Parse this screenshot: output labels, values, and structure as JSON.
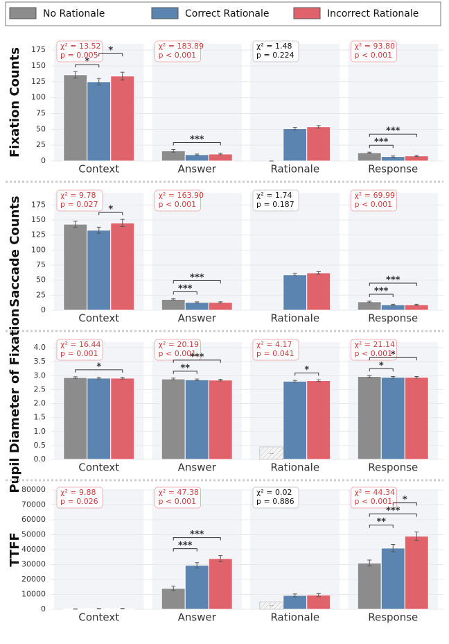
{
  "chart_data": [
    {
      "type": "bar",
      "ylabel": "Fixation Counts",
      "categories": [
        "Context",
        "Answer",
        "Rationale",
        "Response"
      ],
      "series": [
        {
          "name": "No Rationale",
          "color": "#8c8c8c",
          "values": [
            136,
            16,
            0,
            13
          ],
          "errors": [
            5,
            2,
            0,
            1
          ]
        },
        {
          "name": "Correct Rationale",
          "color": "#5b84b1",
          "values": [
            125,
            10,
            51,
            7
          ],
          "errors": [
            5,
            1,
            2,
            1
          ]
        },
        {
          "name": "Incorrect Rationale",
          "color": "#e0636b",
          "values": [
            134,
            11,
            54,
            8
          ],
          "errors": [
            6,
            1,
            2,
            1
          ]
        }
      ],
      "ylim": [
        0,
        185
      ],
      "yticks": [
        0,
        25,
        50,
        75,
        100,
        125,
        150,
        175
      ],
      "stats": [
        {
          "chi2": "χ² = 13.52",
          "p": "p = 0.005",
          "significant": true
        },
        {
          "chi2": "χ² = 183.89",
          "p": "p < 0.001",
          "significant": true
        },
        {
          "chi2": "χ² = 1.48",
          "p": "p = 0.224",
          "significant": false
        },
        {
          "chi2": "χ² = 93.80",
          "p": "p < 0.001",
          "significant": true
        }
      ],
      "brackets": [
        {
          "group": 0,
          "pair": [
            0,
            1
          ],
          "label": "*"
        },
        {
          "group": 0,
          "pair": [
            1,
            2
          ],
          "label": "*"
        },
        {
          "group": 1,
          "pair": [
            0,
            2
          ],
          "label": "***"
        },
        {
          "group": 3,
          "pair": [
            0,
            1
          ],
          "label": "***"
        },
        {
          "group": 3,
          "pair": [
            0,
            2
          ],
          "label": "***"
        }
      ],
      "placeholders": []
    },
    {
      "type": "bar",
      "ylabel": "Saccade Counts",
      "categories": [
        "Context",
        "Answer",
        "Rationale",
        "Response"
      ],
      "series": [
        {
          "name": "No Rationale",
          "color": "#8c8c8c",
          "values": [
            143,
            18,
            null,
            14
          ],
          "errors": [
            5,
            1,
            null,
            1
          ]
        },
        {
          "name": "Correct Rationale",
          "color": "#5b84b1",
          "values": [
            133,
            13,
            59,
            9
          ],
          "errors": [
            5,
            1,
            2,
            1
          ]
        },
        {
          "name": "Incorrect Rationale",
          "color": "#e0636b",
          "values": [
            145,
            13,
            62,
            9
          ],
          "errors": [
            6,
            1,
            2,
            1
          ]
        }
      ],
      "ylim": [
        0,
        195
      ],
      "yticks": [
        0,
        25,
        50,
        75,
        100,
        125,
        150,
        175
      ],
      "stats": [
        {
          "chi2": "χ² = 9.78",
          "p": "p = 0.027",
          "significant": true
        },
        {
          "chi2": "χ² = 163.90",
          "p": "p < 0.001",
          "significant": true
        },
        {
          "chi2": "χ² = 1.74",
          "p": "p = 0.187",
          "significant": false
        },
        {
          "chi2": "χ² = 69.99",
          "p": "p < 0.001",
          "significant": true
        }
      ],
      "brackets": [
        {
          "group": 0,
          "pair": [
            1,
            2
          ],
          "label": "*"
        },
        {
          "group": 1,
          "pair": [
            0,
            1
          ],
          "label": "***"
        },
        {
          "group": 1,
          "pair": [
            0,
            2
          ],
          "label": "***"
        },
        {
          "group": 3,
          "pair": [
            0,
            1
          ],
          "label": "***"
        },
        {
          "group": 3,
          "pair": [
            0,
            2
          ],
          "label": "***"
        }
      ],
      "placeholders": []
    },
    {
      "type": "bar",
      "ylabel": "Pupil Diameter of Fixation",
      "categories": [
        "Context",
        "Answer",
        "Rationale",
        "Response"
      ],
      "series": [
        {
          "name": "No Rationale",
          "color": "#8c8c8c",
          "values": [
            2.93,
            2.88,
            null,
            2.97
          ],
          "errors": [
            0.03,
            0.03,
            null,
            0.03
          ]
        },
        {
          "name": "Correct Rationale",
          "color": "#5b84b1",
          "values": [
            2.91,
            2.85,
            2.8,
            2.94
          ],
          "errors": [
            0.03,
            0.03,
            0.03,
            0.03
          ]
        },
        {
          "name": "Incorrect Rationale",
          "color": "#e0636b",
          "values": [
            2.91,
            2.84,
            2.82,
            2.94
          ],
          "errors": [
            0.03,
            0.03,
            0.03,
            0.03
          ]
        }
      ],
      "ylim": [
        0,
        4.2
      ],
      "yticks": [
        {
          "value": 0,
          "label": "0.0"
        },
        0.5,
        {
          "value": 1,
          "label": "1.0"
        },
        1.5,
        {
          "value": 2,
          "label": "2.0"
        },
        2.5,
        {
          "value": 3,
          "label": "3.0"
        },
        3.5,
        {
          "value": 4,
          "label": "4.0"
        }
      ],
      "stats": [
        {
          "chi2": "χ² = 16.44",
          "p": "p = 0.001",
          "significant": true
        },
        {
          "chi2": "χ² = 20.19",
          "p": "p < 0.001",
          "significant": true
        },
        {
          "chi2": "χ² = 4.17",
          "p": "p = 0.041",
          "significant": true
        },
        {
          "chi2": "χ² = 21.14",
          "p": "p < 0.001",
          "significant": true
        }
      ],
      "brackets": [
        {
          "group": 0,
          "pair": [
            0,
            2
          ],
          "label": "*"
        },
        {
          "group": 1,
          "pair": [
            0,
            1
          ],
          "label": "**"
        },
        {
          "group": 1,
          "pair": [
            0,
            2
          ],
          "label": "***"
        },
        {
          "group": 2,
          "pair": [
            1,
            2
          ],
          "label": "*"
        },
        {
          "group": 3,
          "pair": [
            0,
            1
          ],
          "label": "*"
        },
        {
          "group": 3,
          "pair": [
            0,
            2
          ],
          "label": "*"
        }
      ],
      "placeholders": [
        {
          "group": 2,
          "series": 0,
          "value": 0.45,
          "label": "--"
        }
      ]
    },
    {
      "type": "bar",
      "ylabel": "TTFF",
      "categories": [
        "Context",
        "Answer",
        "Rationale",
        "Response"
      ],
      "series": [
        {
          "name": "No Rationale",
          "color": "#8c8c8c",
          "values": [
            200,
            14000,
            null,
            31000
          ],
          "errors": [
            100,
            1500,
            null,
            2000
          ]
        },
        {
          "name": "Correct Rationale",
          "color": "#5b84b1",
          "values": [
            400,
            29500,
            9300,
            41000
          ],
          "errors": [
            100,
            1800,
            1000,
            2500
          ]
        },
        {
          "name": "Incorrect Rationale",
          "color": "#e0636b",
          "values": [
            500,
            34000,
            9500,
            49000
          ],
          "errors": [
            100,
            2000,
            1000,
            2800
          ]
        }
      ],
      "ylim": [
        0,
        80000
      ],
      "yticks": [
        0,
        10000,
        20000,
        30000,
        40000,
        50000,
        60000,
        70000,
        80000
      ],
      "stats": [
        {
          "chi2": "χ² = 9.88",
          "p": "p = 0.026",
          "significant": true
        },
        {
          "chi2": "χ² = 47.38",
          "p": "p < 0.001",
          "significant": true
        },
        {
          "chi2": "χ² = 0.02",
          "p": "p = 0.886",
          "significant": false
        },
        {
          "chi2": "χ² = 44.34",
          "p": "p < 0.001",
          "significant": true
        }
      ],
      "brackets": [
        {
          "group": 1,
          "pair": [
            0,
            1
          ],
          "label": "***"
        },
        {
          "group": 1,
          "pair": [
            0,
            2
          ],
          "label": "***"
        },
        {
          "group": 3,
          "pair": [
            0,
            1
          ],
          "label": "**"
        },
        {
          "group": 3,
          "pair": [
            0,
            2
          ],
          "label": "***"
        },
        {
          "group": 3,
          "pair": [
            1,
            2
          ],
          "label": "*"
        }
      ],
      "placeholders": [
        {
          "group": 2,
          "series": 0,
          "value": 5000,
          "label": "--"
        }
      ]
    }
  ]
}
